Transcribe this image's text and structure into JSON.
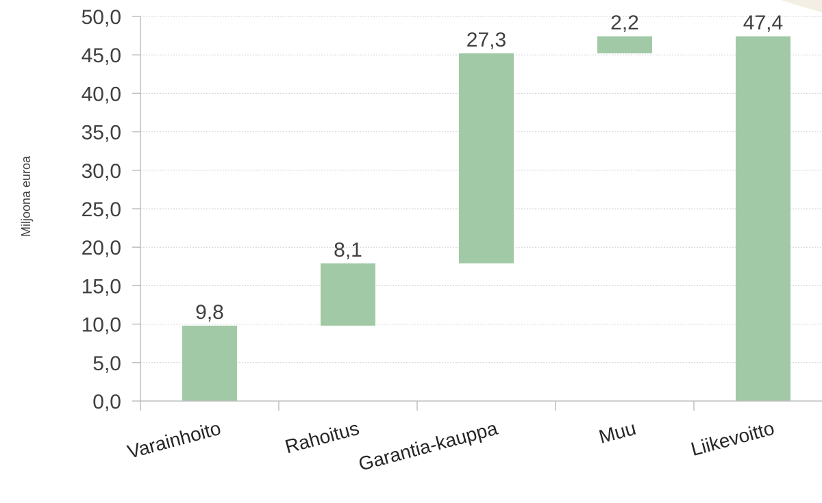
{
  "chart_data": {
    "type": "bar",
    "subtype": "waterfall",
    "ylabel": "Miljoona euroa",
    "xlabel": "",
    "ylim": [
      0,
      50
    ],
    "y_ticks": [
      "0,0",
      "5,0",
      "10,0",
      "15,0",
      "20,0",
      "25,0",
      "30,0",
      "35,0",
      "40,0",
      "45,0",
      "50,0"
    ],
    "grid": true,
    "bar_color": "#a2c9a6",
    "categories": [
      "Varainhoito",
      "Rahoitus",
      "Garantia-kauppa",
      "Muu",
      "Liikevoitto"
    ],
    "bars": [
      {
        "label": "9,8",
        "value": 9.8,
        "base": 0
      },
      {
        "label": "8,1",
        "value": 8.1,
        "base": 9.8
      },
      {
        "label": "27,3",
        "value": 27.3,
        "base": 17.9
      },
      {
        "label": "2,2",
        "value": 2.2,
        "base": 45.2
      },
      {
        "label": "47,4",
        "value": 47.4,
        "base": 0
      }
    ]
  }
}
